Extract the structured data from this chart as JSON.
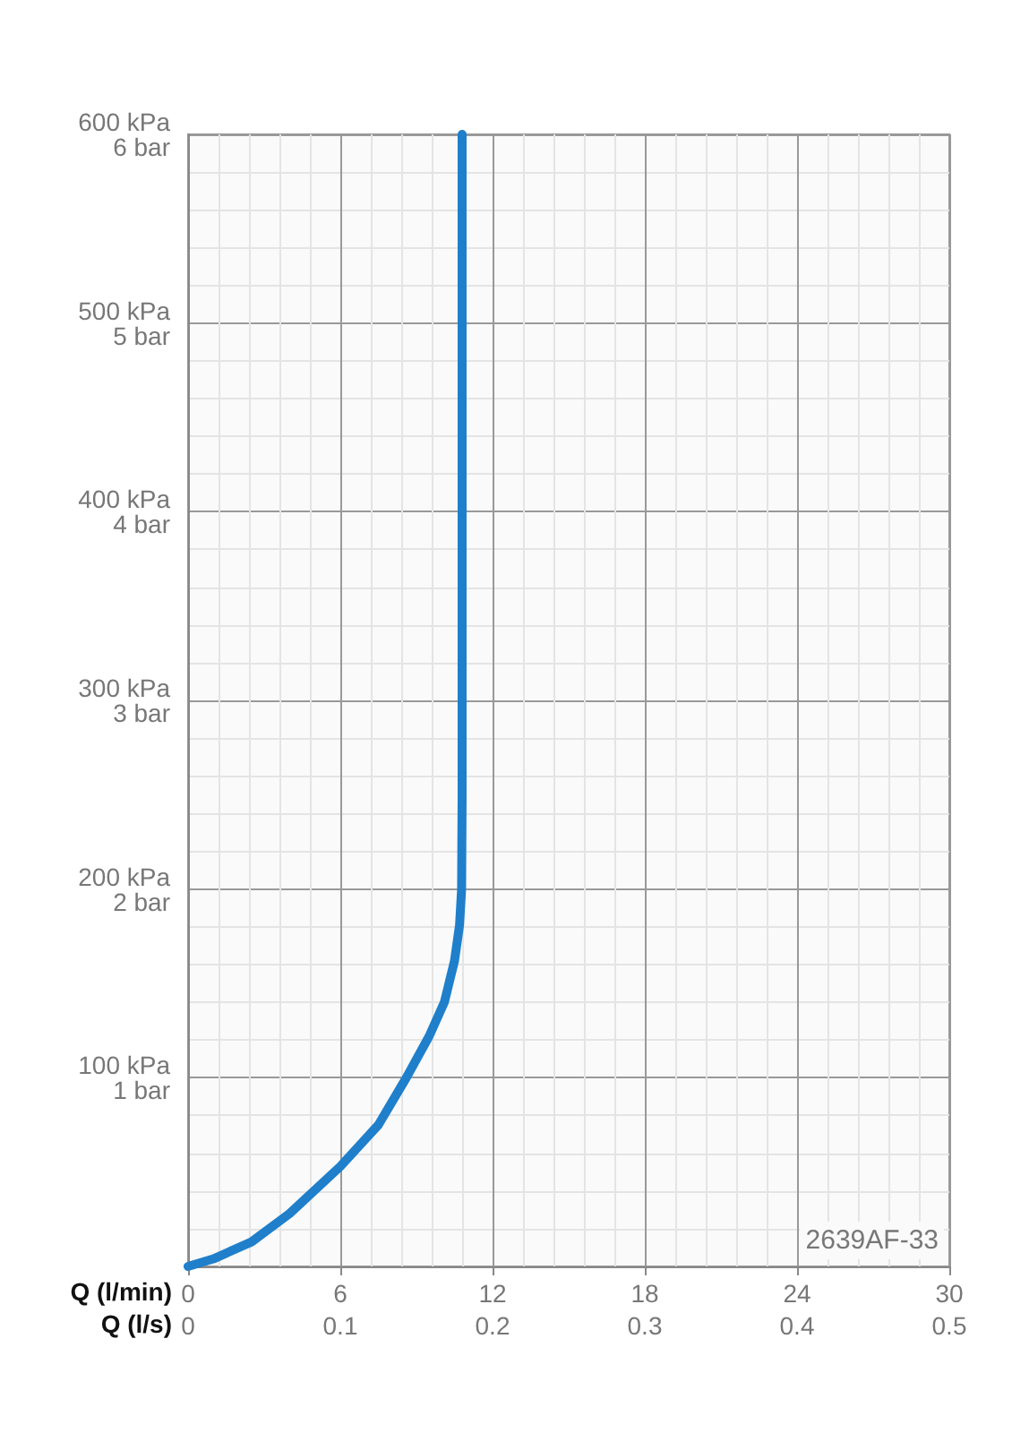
{
  "chart_data": {
    "type": "line",
    "xlabel": "Q (l/min)",
    "x2label": "Q (l/s)",
    "xlim": [
      0,
      30
    ],
    "xticks": [
      0,
      6,
      12,
      18,
      24,
      30
    ],
    "x2lim": [
      0,
      0.5
    ],
    "x2ticks": [
      0,
      0.1,
      0.2,
      0.3,
      0.4,
      0.5
    ],
    "ylim": [
      0,
      600
    ],
    "yticks": [
      {
        "value": 100,
        "label": "100 kPa"
      },
      {
        "value": 200,
        "label": "200 kPa"
      },
      {
        "value": 300,
        "label": "300 kPa"
      },
      {
        "value": 400,
        "label": "400 kPa"
      },
      {
        "value": 500,
        "label": "500 kPa"
      },
      {
        "value": 600,
        "label": "600 kPa"
      }
    ],
    "y2lim": [
      0,
      6
    ],
    "y2ticks": [
      {
        "value": 1,
        "label": "1 bar"
      },
      {
        "value": 2,
        "label": "2 bar"
      },
      {
        "value": 3,
        "label": "3 bar"
      },
      {
        "value": 4,
        "label": "4 bar"
      },
      {
        "value": 5,
        "label": "5 bar"
      },
      {
        "value": 6,
        "label": "6 bar"
      }
    ],
    "series": [
      {
        "color": "#1f7fcb",
        "x": [
          0,
          1,
          2.5,
          4,
          6,
          7.5,
          8.6,
          9.5,
          10.1,
          10.5,
          10.7,
          10.78,
          10.8,
          10.8
        ],
        "values": [
          0,
          4,
          13,
          28,
          53,
          75,
          100,
          122,
          140,
          162,
          181,
          200,
          250,
          600
        ]
      }
    ],
    "annotations": [
      "2639AF-33"
    ],
    "grid": true,
    "marker": "none",
    "line_style": "solid"
  }
}
